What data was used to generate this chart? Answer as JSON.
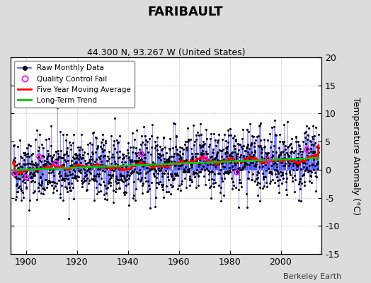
{
  "title": "FARIBAULT",
  "subtitle": "44.300 N, 93.267 W (United States)",
  "ylabel": "Temperature Anomaly (°C)",
  "watermark": "Berkeley Earth",
  "ylim": [
    -15,
    20
  ],
  "yticks": [
    -15,
    -10,
    -5,
    0,
    5,
    10,
    15,
    20
  ],
  "year_start": 1895,
  "year_end": 2014,
  "seed": 42,
  "background_color": "#dcdcdc",
  "plot_background": "#ffffff",
  "raw_color": "#4444ff",
  "ma_color": "#ff0000",
  "trend_color": "#00cc00",
  "qc_color": "#ff00ff",
  "marker_color": "#000000",
  "noise_amp": 2.8,
  "trend_per_decade": 0.15
}
